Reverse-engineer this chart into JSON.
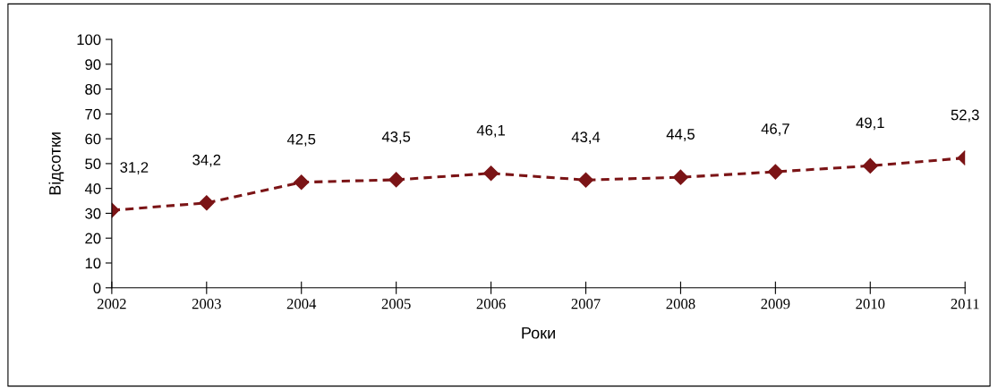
{
  "chart_data": {
    "type": "line",
    "xlabel": "Роки",
    "ylabel": "Відсотки",
    "categories": [
      "2002",
      "2003",
      "2004",
      "2005",
      "2006",
      "2007",
      "2008",
      "2009",
      "2010",
      "2011"
    ],
    "series": [
      {
        "color": "#7b1416",
        "values": [
          31.2,
          34.2,
          42.5,
          43.5,
          46.1,
          43.4,
          44.5,
          46.7,
          49.1,
          52.3
        ],
        "value_labels": [
          "31,2",
          "34,2",
          "42,5",
          "43,5",
          "46,1",
          "43,4",
          "44,5",
          "46,7",
          "49,1",
          "52,3"
        ]
      }
    ],
    "ylim": [
      0,
      100
    ],
    "yticks": [
      0,
      10,
      20,
      30,
      40,
      50,
      60,
      70,
      80,
      90,
      100
    ],
    "marker": "diamond",
    "line_style": "dashed",
    "grid": false,
    "legend": false
  }
}
